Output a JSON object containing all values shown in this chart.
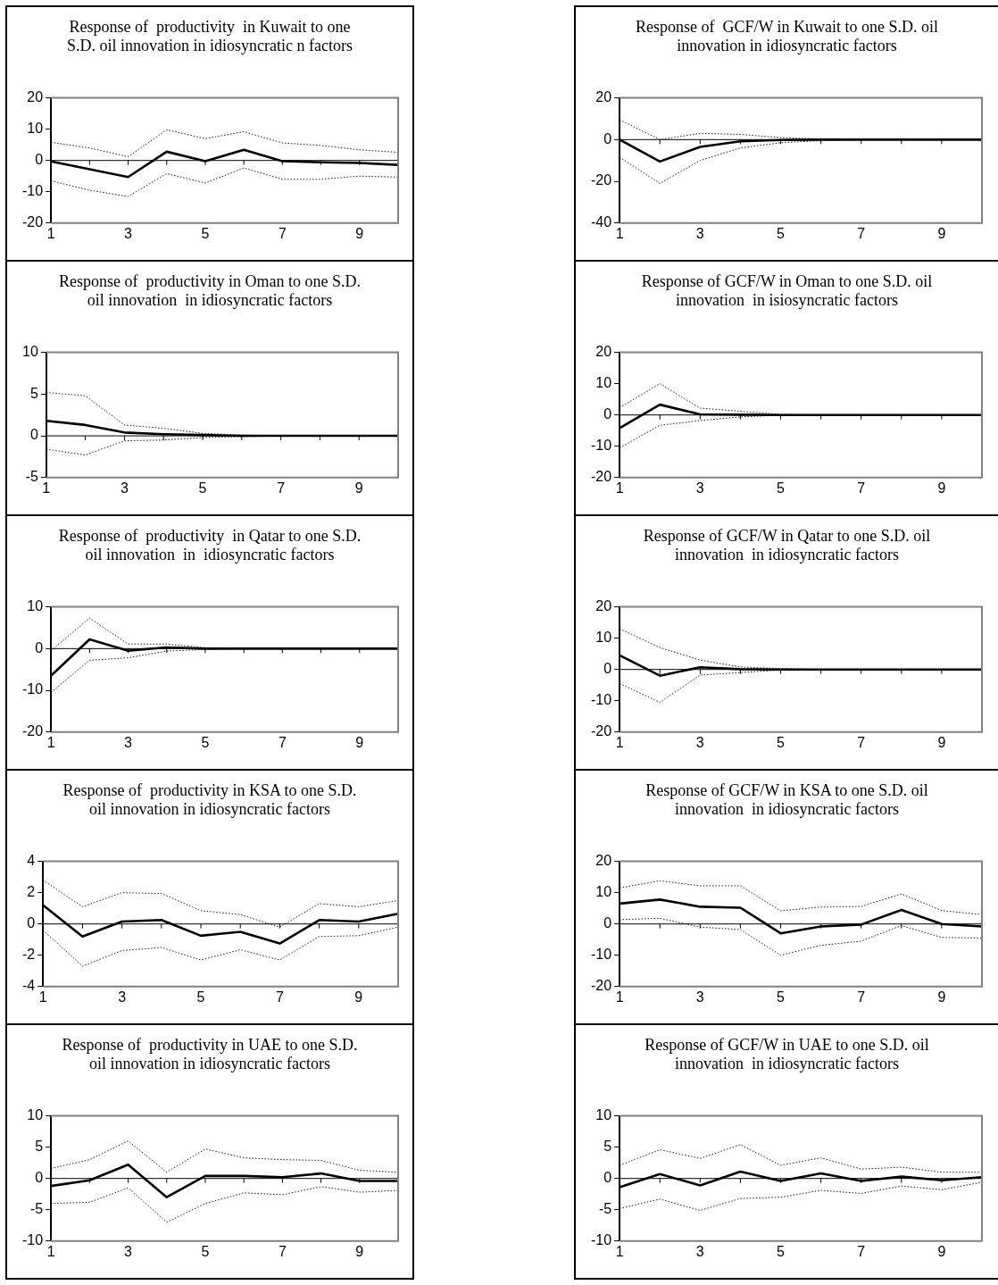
{
  "chart_data": [
    {
      "type": "line",
      "title": "Response of  productivity  in Kuwait to one S.D. oil innovation in idiosyncratic n factors",
      "categories": [
        "1",
        null,
        "3",
        null,
        "5",
        null,
        "7",
        null,
        "9",
        null
      ],
      "ylim": [
        -20,
        20
      ],
      "yticks": [
        -20,
        -10,
        0,
        10,
        20
      ],
      "series": [
        {
          "color": "#000000",
          "line_style": "dotted",
          "values": [
            5.8,
            4.0,
            1.2,
            9.8,
            7.0,
            9.2,
            5.6,
            4.8,
            3.4,
            2.6
          ]
        },
        {
          "color": "#000000",
          "line_style": "solid",
          "values": [
            -0.3,
            -2.8,
            -5.3,
            2.8,
            -0.2,
            3.4,
            -0.2,
            -0.6,
            -0.8,
            -1.4
          ]
        },
        {
          "color": "#000000",
          "line_style": "dotted",
          "values": [
            -6.5,
            -9.5,
            -11.5,
            -4.2,
            -7.2,
            -2.4,
            -6.0,
            -6.0,
            -5.0,
            -5.3
          ]
        }
      ]
    },
    {
      "type": "line",
      "title": "Response of  GCF/W in Kuwait to one S.D. oil innovation in idiosyncratic factors",
      "categories": [
        "1",
        null,
        "3",
        null,
        "5",
        null,
        "7",
        null,
        "9",
        null
      ],
      "ylim": [
        -40,
        20
      ],
      "yticks": [
        -40,
        -20,
        0,
        20
      ],
      "series": [
        {
          "color": "#000000",
          "line_style": "dotted",
          "values": [
            9.5,
            0,
            3.0,
            2.5,
            1.0,
            0.3,
            0,
            0,
            0,
            0
          ]
        },
        {
          "color": "#000000",
          "line_style": "solid",
          "values": [
            0,
            -10.5,
            -3.5,
            -0.8,
            -0.2,
            0,
            0,
            0,
            0,
            0
          ]
        },
        {
          "color": "#000000",
          "line_style": "dotted",
          "values": [
            -8.5,
            -21,
            -10,
            -4,
            -1.5,
            -0.5,
            0,
            0,
            0,
            0
          ]
        }
      ]
    },
    {
      "type": "line",
      "title": "Response of  productivity in Oman to one S.D. oil innovation  in idiosyncratic factors",
      "categories": [
        "1",
        null,
        "3",
        null,
        "5",
        null,
        "7",
        null,
        "9",
        null
      ],
      "ylim": [
        -5,
        10
      ],
      "yticks": [
        -5,
        0,
        5,
        10
      ],
      "series": [
        {
          "color": "#000000",
          "line_style": "dotted",
          "values": [
            5.2,
            4.8,
            1.3,
            0.9,
            0.3,
            0.1,
            0,
            0,
            0,
            0
          ]
        },
        {
          "color": "#000000",
          "line_style": "solid",
          "values": [
            1.8,
            1.3,
            0.4,
            0.2,
            0.1,
            0,
            0,
            0,
            0,
            0
          ]
        },
        {
          "color": "#000000",
          "line_style": "dotted",
          "values": [
            -1.6,
            -2.3,
            -0.6,
            -0.5,
            -0.2,
            -0.1,
            0,
            0,
            0,
            0
          ]
        }
      ]
    },
    {
      "type": "line",
      "title": "Response of GCF/W in Oman to one S.D. oil innovation  in isiosyncratic factors",
      "categories": [
        "1",
        null,
        "3",
        null,
        "5",
        null,
        "7",
        null,
        "9",
        null
      ],
      "ylim": [
        -20,
        20
      ],
      "yticks": [
        -20,
        -10,
        0,
        10,
        20
      ],
      "series": [
        {
          "color": "#000000",
          "line_style": "dotted",
          "values": [
            2.3,
            10,
            2.2,
            1.2,
            0.2,
            0,
            0,
            0,
            0,
            0
          ]
        },
        {
          "color": "#000000",
          "line_style": "solid",
          "values": [
            -4.2,
            3.3,
            0.2,
            0.1,
            0,
            0,
            0,
            0,
            0,
            0
          ]
        },
        {
          "color": "#000000",
          "line_style": "dotted",
          "values": [
            -10.5,
            -3.3,
            -1.8,
            -0.6,
            -0.1,
            0,
            0,
            0,
            0,
            0
          ]
        }
      ]
    },
    {
      "type": "line",
      "title": "Response of  productivity  in Qatar to one S.D. oil innovation  in  idiosyncratic factors",
      "categories": [
        "1",
        null,
        "3",
        null,
        "5",
        null,
        "7",
        null,
        "9",
        null
      ],
      "ylim": [
        -20,
        10
      ],
      "yticks": [
        -20,
        -10,
        0,
        10
      ],
      "series": [
        {
          "color": "#000000",
          "line_style": "dotted",
          "values": [
            -0.5,
            7.3,
            1.1,
            1.1,
            0.2,
            0,
            0,
            0,
            0,
            0
          ]
        },
        {
          "color": "#000000",
          "line_style": "solid",
          "values": [
            -6.5,
            2.2,
            -0.5,
            0.3,
            0,
            0,
            0,
            0,
            0,
            0
          ]
        },
        {
          "color": "#000000",
          "line_style": "dotted",
          "values": [
            -10.5,
            -2.8,
            -2.2,
            -0.6,
            -0.2,
            0,
            0,
            0,
            0,
            0
          ]
        }
      ]
    },
    {
      "type": "line",
      "title": "Response of GCF/W in Qatar to one S.D. oil innovation  in idiosyncratic factors",
      "categories": [
        "1",
        null,
        "3",
        null,
        "5",
        null,
        "7",
        null,
        "9",
        null
      ],
      "ylim": [
        -20,
        20
      ],
      "yticks": [
        -20,
        -10,
        0,
        10,
        20
      ],
      "series": [
        {
          "color": "#000000",
          "line_style": "dotted",
          "values": [
            13,
            7,
            3.0,
            0.8,
            0.3,
            0,
            0,
            0,
            0,
            0
          ]
        },
        {
          "color": "#000000",
          "line_style": "solid",
          "values": [
            4.5,
            -2.0,
            0.7,
            0.1,
            0,
            0,
            0,
            0,
            0,
            0
          ]
        },
        {
          "color": "#000000",
          "line_style": "dotted",
          "values": [
            -4.5,
            -10.5,
            -1.8,
            -1.0,
            -0.2,
            0,
            0,
            0,
            0,
            0
          ]
        }
      ]
    },
    {
      "type": "line",
      "title": "Response of  productivity in KSA to one S.D. oil innovation in idiosyncratic factors",
      "categories": [
        "1",
        null,
        "3",
        null,
        "5",
        null,
        "7",
        null,
        "9",
        null
      ],
      "ylim": [
        -4,
        4
      ],
      "yticks": [
        -4,
        -2,
        0,
        2,
        4
      ],
      "series": [
        {
          "color": "#000000",
          "line_style": "dotted",
          "values": [
            2.8,
            1.1,
            2.0,
            1.95,
            0.85,
            0.6,
            -0.2,
            1.3,
            1.1,
            1.5
          ]
        },
        {
          "color": "#000000",
          "line_style": "solid",
          "values": [
            1.2,
            -0.8,
            0.15,
            0.25,
            -0.75,
            -0.5,
            -1.25,
            0.25,
            0.15,
            0.65
          ]
        },
        {
          "color": "#000000",
          "line_style": "dotted",
          "values": [
            -0.4,
            -2.7,
            -1.7,
            -1.5,
            -2.3,
            -1.65,
            -2.3,
            -0.8,
            -0.75,
            -0.2
          ]
        }
      ]
    },
    {
      "type": "line",
      "title": "Response of GCF/W in KSA to one S.D. oil innovation  in idiosyncratic factors",
      "categories": [
        "1",
        null,
        "3",
        null,
        "5",
        null,
        "7",
        null,
        "9",
        null
      ],
      "ylim": [
        -20,
        20
      ],
      "yticks": [
        -20,
        -10,
        0,
        10,
        20
      ],
      "series": [
        {
          "color": "#000000",
          "line_style": "dotted",
          "values": [
            11.5,
            13.8,
            12.2,
            12.2,
            4.2,
            5.4,
            5.6,
            9.6,
            4.3,
            3.0
          ]
        },
        {
          "color": "#000000",
          "line_style": "solid",
          "values": [
            6.5,
            7.8,
            5.5,
            5.2,
            -3.0,
            -0.8,
            -0.2,
            4.5,
            0,
            -0.8
          ]
        },
        {
          "color": "#000000",
          "line_style": "dotted",
          "values": [
            1.4,
            1.8,
            -1.0,
            -1.8,
            -10,
            -6.8,
            -5.5,
            -0.5,
            -4.3,
            -4.5
          ]
        }
      ]
    },
    {
      "type": "line",
      "title": "Response of  productivity in UAE to one S.D. oil innovation in idiosyncratic factors",
      "categories": [
        "1",
        null,
        "3",
        null,
        "5",
        null,
        "7",
        null,
        "9",
        null
      ],
      "ylim": [
        -10,
        10
      ],
      "yticks": [
        -10,
        -5,
        0,
        5,
        10
      ],
      "series": [
        {
          "color": "#000000",
          "line_style": "dotted",
          "values": [
            1.6,
            3.0,
            6.0,
            1.0,
            4.7,
            3.3,
            3.0,
            2.9,
            1.3,
            1.0
          ]
        },
        {
          "color": "#000000",
          "line_style": "solid",
          "values": [
            -1.2,
            -0.3,
            2.2,
            -3.0,
            0.4,
            0.4,
            0.2,
            0.8,
            -0.4,
            -0.4
          ]
        },
        {
          "color": "#000000",
          "line_style": "dotted",
          "values": [
            -4.0,
            -3.8,
            -1.5,
            -7.0,
            -4.0,
            -2.3,
            -2.6,
            -1.3,
            -2.2,
            -1.9
          ]
        }
      ]
    },
    {
      "type": "line",
      "title": "Response of GCF/W in UAE to one S.D. oil innovation  in idiosyncratic factors",
      "categories": [
        "1",
        null,
        "3",
        null,
        "5",
        null,
        "7",
        null,
        "9",
        null
      ],
      "ylim": [
        -10,
        10
      ],
      "yticks": [
        -10,
        -5,
        0,
        5,
        10
      ],
      "series": [
        {
          "color": "#000000",
          "line_style": "dotted",
          "values": [
            2.1,
            4.6,
            3.2,
            5.4,
            2.1,
            3.3,
            1.5,
            1.8,
            1.0,
            1.0
          ]
        },
        {
          "color": "#000000",
          "line_style": "solid",
          "values": [
            -1.4,
            0.7,
            -1.1,
            1.1,
            -0.4,
            0.8,
            -0.4,
            0.3,
            -0.3,
            0.2
          ]
        },
        {
          "color": "#000000",
          "line_style": "dotted",
          "values": [
            -4.8,
            -3.3,
            -5.1,
            -3.2,
            -3.0,
            -1.9,
            -2.4,
            -1.2,
            -1.8,
            -0.6
          ]
        }
      ]
    }
  ]
}
